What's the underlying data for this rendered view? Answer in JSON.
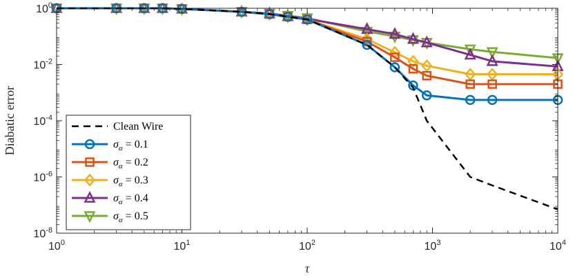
{
  "chart_data": {
    "type": "line",
    "xscale": "log",
    "yscale": "log",
    "xlim": [
      1,
      10000
    ],
    "ylim": [
      1e-08,
      1
    ],
    "xlabel": "τ",
    "ylabel": "Diabatic error",
    "x_ticks": [
      {
        "value": 1,
        "base": "10",
        "exp": "0"
      },
      {
        "value": 10,
        "base": "10",
        "exp": "1"
      },
      {
        "value": 100,
        "base": "10",
        "exp": "2"
      },
      {
        "value": 1000,
        "base": "10",
        "exp": "3"
      },
      {
        "value": 10000,
        "base": "10",
        "exp": "4"
      }
    ],
    "y_ticks": [
      {
        "value": 1e-08,
        "base": "10",
        "exp": "-8"
      },
      {
        "value": 1e-06,
        "base": "10",
        "exp": "-6"
      },
      {
        "value": 0.0001,
        "base": "10",
        "exp": "-4"
      },
      {
        "value": 0.01,
        "base": "10",
        "exp": "-2"
      },
      {
        "value": 1,
        "base": "10",
        "exp": "0"
      }
    ],
    "series": [
      {
        "name": "Clean Wire",
        "legend": "Clean Wire",
        "color": "#000000",
        "dash": true,
        "marker": "none",
        "x": [
          1,
          3,
          5,
          7,
          10,
          30,
          50,
          70,
          100,
          300,
          500,
          700,
          900,
          2000,
          3000,
          10000
        ],
        "y": [
          1,
          1,
          1,
          1,
          0.95,
          0.75,
          0.62,
          0.5,
          0.4,
          0.05,
          0.008,
          0.0015,
          0.0001,
          1e-06,
          5e-07,
          7e-08
        ]
      },
      {
        "name": "σα = 0.1",
        "legend_prefix": "σ",
        "legend_sub": "α",
        "legend_value": " = 0.1",
        "color": "#0072BD",
        "marker": "circle",
        "x": [
          1,
          3,
          5,
          7,
          10,
          30,
          50,
          70,
          100,
          300,
          500,
          700,
          900,
          2000,
          3000,
          10000
        ],
        "y": [
          1,
          1,
          1,
          1,
          0.95,
          0.75,
          0.62,
          0.5,
          0.4,
          0.05,
          0.008,
          0.0018,
          0.0008,
          0.00055,
          0.00055,
          0.00055
        ]
      },
      {
        "name": "σα = 0.2",
        "legend_prefix": "σ",
        "legend_sub": "α",
        "legend_value": " = 0.2",
        "color": "#D95319",
        "marker": "square",
        "x": [
          1,
          3,
          5,
          7,
          10,
          30,
          50,
          70,
          100,
          300,
          500,
          700,
          900,
          2000,
          3000,
          10000
        ],
        "y": [
          1,
          1,
          1,
          1,
          0.95,
          0.75,
          0.62,
          0.5,
          0.4,
          0.065,
          0.018,
          0.007,
          0.004,
          0.002,
          0.002,
          0.002
        ]
      },
      {
        "name": "σα = 0.3",
        "legend_prefix": "σ",
        "legend_sub": "α",
        "legend_value": " = 0.3",
        "color": "#EDB120",
        "marker": "diamond",
        "x": [
          1,
          3,
          5,
          7,
          10,
          30,
          50,
          70,
          100,
          300,
          500,
          700,
          900,
          2000,
          3000,
          10000
        ],
        "y": [
          1,
          1,
          1,
          1,
          0.95,
          0.75,
          0.62,
          0.5,
          0.4,
          0.08,
          0.027,
          0.013,
          0.009,
          0.0045,
          0.0045,
          0.0045
        ]
      },
      {
        "name": "σα = 0.4",
        "legend_prefix": "σ",
        "legend_sub": "α",
        "legend_value": " = 0.4",
        "color": "#7E2F8E",
        "marker": "triangle-up",
        "x": [
          1,
          3,
          5,
          7,
          10,
          30,
          50,
          70,
          100,
          300,
          500,
          700,
          900,
          2000,
          3000,
          10000
        ],
        "y": [
          1,
          1,
          1,
          1,
          0.95,
          0.75,
          0.65,
          0.52,
          0.42,
          0.18,
          0.12,
          0.08,
          0.06,
          0.022,
          0.013,
          0.0085
        ]
      },
      {
        "name": "σα = 0.5",
        "legend_prefix": "σ",
        "legend_sub": "α",
        "legend_value": " = 0.5",
        "color": "#77AC30",
        "marker": "triangle-down",
        "x": [
          1,
          3,
          5,
          7,
          10,
          30,
          50,
          70,
          100,
          300,
          500,
          700,
          900,
          2000,
          3000,
          10000
        ],
        "y": [
          1,
          1,
          1,
          1,
          0.95,
          0.75,
          0.65,
          0.55,
          0.45,
          0.15,
          0.1,
          0.075,
          0.06,
          0.035,
          0.028,
          0.017
        ]
      }
    ],
    "legend_location": "bottom-left"
  }
}
